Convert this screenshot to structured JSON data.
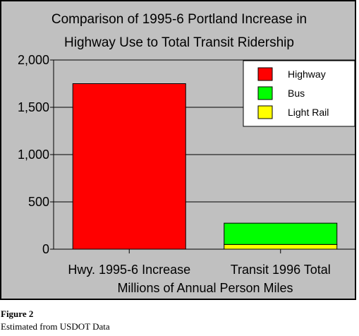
{
  "figure": {
    "label": "Figure 2",
    "source": "Estimated from USDOT Data"
  },
  "chart_data": {
    "type": "bar",
    "stacked": true,
    "title_lines": [
      "Comparison of 1995-6 Portland Increase in",
      "Highway Use to Total Transit Ridership"
    ],
    "categories": [
      "Hwy. 1995-6 Increase",
      "Transit 1996 Total"
    ],
    "xlabel": "Millions of Annual Person Miles",
    "ylabel": "",
    "ylim": [
      0,
      2000
    ],
    "yticks": [
      0,
      500,
      1000,
      1500,
      2000
    ],
    "ytick_labels": [
      "0",
      "500",
      "1,000",
      "1,500",
      "2,000"
    ],
    "grid": true,
    "legend_position": "top-right",
    "series": [
      {
        "name": "Highway",
        "color": "#ff0000",
        "values": [
          1750,
          0
        ]
      },
      {
        "name": "Bus",
        "color": "#00ff00",
        "values": [
          0,
          225
        ]
      },
      {
        "name": "Light Rail",
        "color": "#ffff00",
        "values": [
          0,
          50
        ]
      }
    ],
    "stack_order": [
      "Light Rail",
      "Bus",
      "Highway"
    ],
    "plot_background": "#c0c0c0"
  }
}
